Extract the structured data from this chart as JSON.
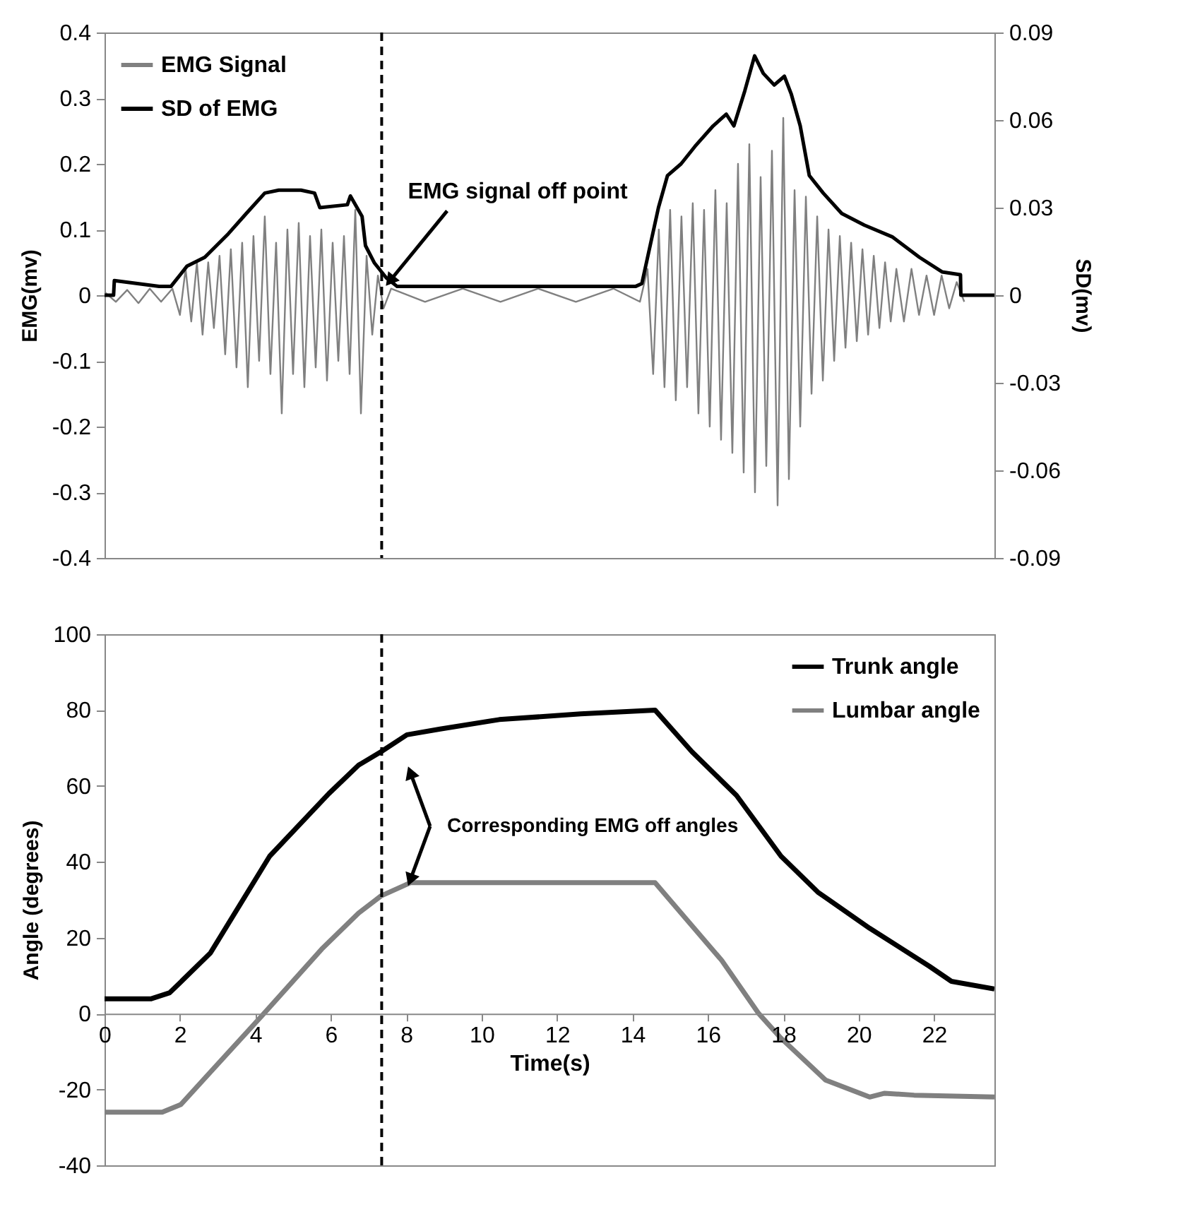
{
  "chart_data": [
    {
      "type": "line",
      "ylabel": "EMG(mv)",
      "y2label": "SD(mv)",
      "xlim": [
        0,
        23.6
      ],
      "ylim": [
        -0.4,
        0.4
      ],
      "yticks": [
        -0.4,
        -0.3,
        -0.2,
        -0.1,
        0,
        0.1,
        0.2,
        0.3,
        0.4
      ],
      "y2lim": [
        -0.09,
        0.09
      ],
      "y2ticks": [
        -0.09,
        -0.06,
        -0.03,
        0,
        0.03,
        0.06,
        0.09
      ],
      "tick_labels": "y",
      "legend": "top left",
      "annotations": [
        {
          "text": "EMG signal off point",
          "x": 7.4,
          "y": 0.01
        }
      ],
      "ref_lines": [
        {
          "axis": "x",
          "value": 7.35,
          "color": "#000000",
          "line_style": "dashed"
        }
      ],
      "series": [
        {
          "name": "EMG Signal",
          "color": "#808080",
          "x": [
            0,
            0.3,
            0.6,
            0.9,
            1.2,
            1.5,
            1.8,
            2.0,
            2.15,
            2.3,
            2.45,
            2.6,
            2.75,
            2.9,
            3.05,
            3.2,
            3.35,
            3.5,
            3.65,
            3.8,
            3.95,
            4.1,
            4.25,
            4.4,
            4.55,
            4.7,
            4.85,
            5.0,
            5.15,
            5.3,
            5.45,
            5.6,
            5.75,
            5.9,
            6.05,
            6.2,
            6.35,
            6.5,
            6.65,
            6.8,
            6.95,
            7.1,
            7.25,
            7.4,
            7.6,
            8.5,
            9.5,
            10.5,
            11.5,
            12.5,
            13.5,
            14.2,
            14.4,
            14.55,
            14.7,
            14.85,
            15.0,
            15.15,
            15.3,
            15.45,
            15.6,
            15.75,
            15.9,
            16.05,
            16.2,
            16.35,
            16.5,
            16.65,
            16.8,
            16.95,
            17.1,
            17.25,
            17.4,
            17.55,
            17.7,
            17.85,
            18.0,
            18.15,
            18.3,
            18.45,
            18.6,
            18.75,
            18.9,
            19.05,
            19.2,
            19.35,
            19.5,
            19.65,
            19.8,
            19.95,
            20.1,
            20.25,
            20.4,
            20.55,
            20.7,
            20.85,
            21.0,
            21.2,
            21.4,
            21.6,
            21.8,
            22.0,
            22.2,
            22.4,
            22.6,
            22.8
          ],
          "values": [
            0.005,
            -0.01,
            0.008,
            -0.012,
            0.01,
            -0.01,
            0.01,
            -0.03,
            0.04,
            -0.04,
            0.05,
            -0.06,
            0.05,
            -0.05,
            0.06,
            -0.09,
            0.07,
            -0.11,
            0.08,
            -0.14,
            0.09,
            -0.1,
            0.12,
            -0.12,
            0.08,
            -0.18,
            0.1,
            -0.12,
            0.11,
            -0.14,
            0.09,
            -0.11,
            0.1,
            -0.13,
            0.08,
            -0.1,
            0.09,
            -0.12,
            0.13,
            -0.18,
            0.06,
            -0.06,
            0.03,
            -0.02,
            0.01,
            -0.01,
            0.01,
            -0.01,
            0.01,
            -0.01,
            0.01,
            -0.01,
            0.04,
            -0.12,
            0.1,
            -0.14,
            0.13,
            -0.16,
            0.12,
            -0.14,
            0.14,
            -0.18,
            0.13,
            -0.2,
            0.16,
            -0.22,
            0.14,
            -0.24,
            0.2,
            -0.27,
            0.23,
            -0.3,
            0.18,
            -0.26,
            0.22,
            -0.32,
            0.27,
            -0.28,
            0.16,
            -0.2,
            0.15,
            -0.15,
            0.12,
            -0.13,
            0.1,
            -0.1,
            0.09,
            -0.08,
            0.08,
            -0.07,
            0.07,
            -0.06,
            0.06,
            -0.05,
            0.05,
            -0.04,
            0.04,
            -0.04,
            0.04,
            -0.03,
            0.03,
            -0.03,
            0.03,
            -0.02,
            0.02,
            -0.01
          ]
        },
        {
          "name": "SD of EMG",
          "color": "#000000",
          "axis": "y2",
          "x": [
            0,
            0.24,
            0.26,
            1.45,
            1.76,
            2.19,
            2.66,
            3.28,
            3.76,
            4.25,
            4.62,
            5.21,
            5.57,
            5.71,
            6.44,
            6.52,
            6.83,
            6.92,
            7.16,
            7.47,
            7.76,
            14.08,
            14.25,
            14.69,
            14.93,
            15.29,
            15.66,
            16.14,
            16.49,
            16.69,
            16.98,
            17.24,
            17.47,
            17.76,
            18.03,
            18.21,
            18.45,
            18.69,
            19.06,
            19.55,
            20.15,
            20.89,
            21.61,
            22.21,
            22.7,
            22.71,
            23.6
          ],
          "values": [
            0,
            0,
            0.005,
            0.003,
            0.003,
            0.01,
            0.013,
            0.021,
            0.028,
            0.035,
            0.036,
            0.036,
            0.035,
            0.03,
            0.031,
            0.034,
            0.027,
            0.017,
            0.011,
            0.006,
            0.003,
            0.003,
            0.004,
            0.03,
            0.041,
            0.045,
            0.051,
            0.058,
            0.062,
            0.058,
            0.07,
            0.082,
            0.076,
            0.072,
            0.075,
            0.069,
            0.058,
            0.041,
            0.035,
            0.028,
            0.024,
            0.02,
            0.013,
            0.008,
            0.007,
            0,
            0
          ]
        }
      ]
    },
    {
      "type": "line",
      "xlabel": "Time(s)",
      "ylabel": "Angle (degrees)",
      "xlim": [
        0,
        23.6
      ],
      "xticks": [
        0,
        2,
        4,
        6,
        8,
        10,
        12,
        14,
        16,
        18,
        20,
        22
      ],
      "ylim": [
        -40,
        100
      ],
      "yticks": [
        -40,
        -20,
        0,
        20,
        40,
        60,
        80,
        100
      ],
      "legend": "top right",
      "annotations": [
        {
          "text": "Corresponding EMG off angles",
          "x": 8.11,
          "y": 34.5
        }
      ],
      "ref_lines": [
        {
          "axis": "x",
          "value": 7.35,
          "color": "#000000",
          "line_style": "dashed"
        }
      ],
      "series": [
        {
          "name": "Trunk angle",
          "color": "#000000",
          "x": [
            0,
            1.24,
            1.73,
            2.81,
            4.38,
            5.95,
            6.74,
            7.33,
            8.02,
            8.9,
            10.47,
            12.63,
            14.6,
            15.58,
            16.76,
            17.94,
            18.92,
            20.29,
            21.87,
            22.46,
            23.6
          ],
          "values": [
            3.9,
            3.9,
            5.5,
            16,
            41.5,
            58,
            65.5,
            69,
            73.5,
            75,
            77.5,
            79,
            80,
            69,
            57.5,
            41.5,
            32,
            22.5,
            12.5,
            8.5,
            6.5
          ]
        },
        {
          "name": "Lumbar angle",
          "color": "#808080",
          "x": [
            0,
            1.53,
            2.02,
            4.18,
            5.76,
            6.74,
            7.33,
            8.11,
            14.6,
            16.37,
            17.35,
            17.94,
            19.12,
            20.29,
            20.69,
            21.47,
            23.6
          ],
          "values": [
            -26,
            -26,
            -24,
            -0.5,
            17,
            26.5,
            31,
            34.5,
            34.5,
            14,
            0,
            -6.5,
            -17.5,
            -22,
            -21,
            -21.5,
            -22
          ]
        }
      ]
    }
  ]
}
